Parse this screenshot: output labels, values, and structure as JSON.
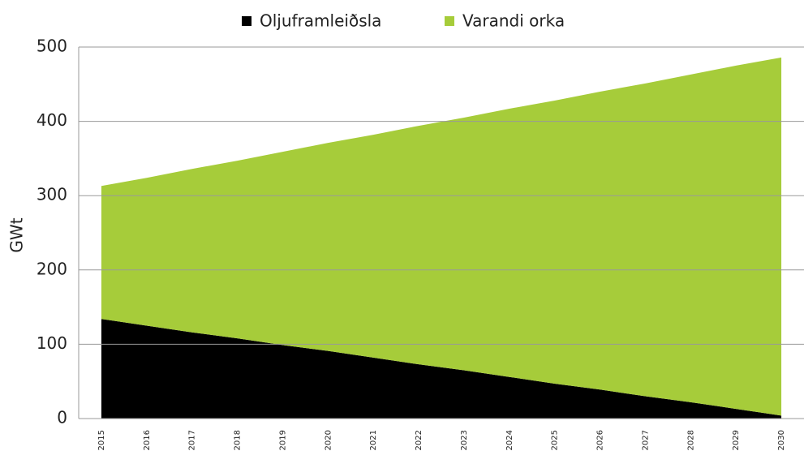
{
  "chart_data": {
    "type": "stacked_area",
    "y_label": "GWt",
    "categories": [
      "2015",
      "2016",
      "2017",
      "2018",
      "2019",
      "2020",
      "2021",
      "2022",
      "2023",
      "2024",
      "2025",
      "2026",
      "2027",
      "2028",
      "2029",
      "2030"
    ],
    "series": [
      {
        "name": "Oljuframleiðsla",
        "color": "#000000",
        "values": [
          134,
          125,
          116,
          108,
          99,
          91,
          82,
          73,
          65,
          56,
          47,
          39,
          30,
          22,
          13,
          4
        ]
      },
      {
        "name": "Varandi orka",
        "color": "#a6cc3a",
        "values": [
          179,
          199,
          220,
          239,
          260,
          280,
          300,
          321,
          340,
          361,
          381,
          401,
          421,
          441,
          462,
          482
        ]
      }
    ],
    "ylim": [
      0,
      500
    ],
    "yticks": [
      0,
      100,
      200,
      300,
      400,
      500
    ],
    "grid": true,
    "legend": "top"
  }
}
